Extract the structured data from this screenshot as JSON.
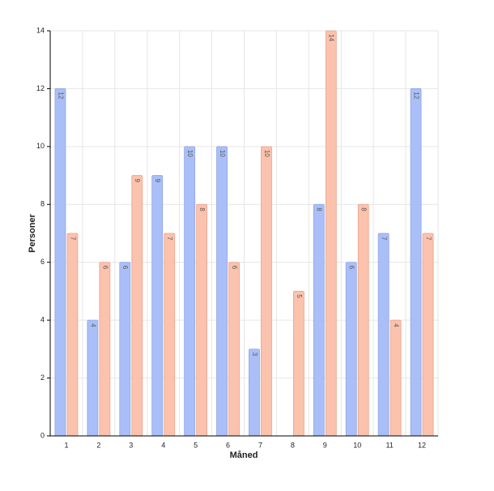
{
  "chart_data": {
    "type": "bar",
    "x_label": "Måned",
    "y_label": "Personer",
    "categories": [
      "1",
      "2",
      "3",
      "4",
      "5",
      "6",
      "7",
      "8",
      "9",
      "10",
      "11",
      "12"
    ],
    "series": [
      {
        "color": "#aabff7",
        "values": [
          12,
          4,
          6,
          9,
          10,
          10,
          3,
          null,
          8,
          6,
          7,
          12
        ]
      },
      {
        "color": "#fbc2ad",
        "values": [
          7,
          6,
          9,
          7,
          8,
          6,
          10,
          5,
          14,
          8,
          4,
          7
        ]
      }
    ],
    "ylim": [
      0,
      14
    ],
    "yticks": [
      0,
      2,
      4,
      6,
      8,
      10,
      12,
      14
    ],
    "grid": true,
    "data_labels": true
  }
}
